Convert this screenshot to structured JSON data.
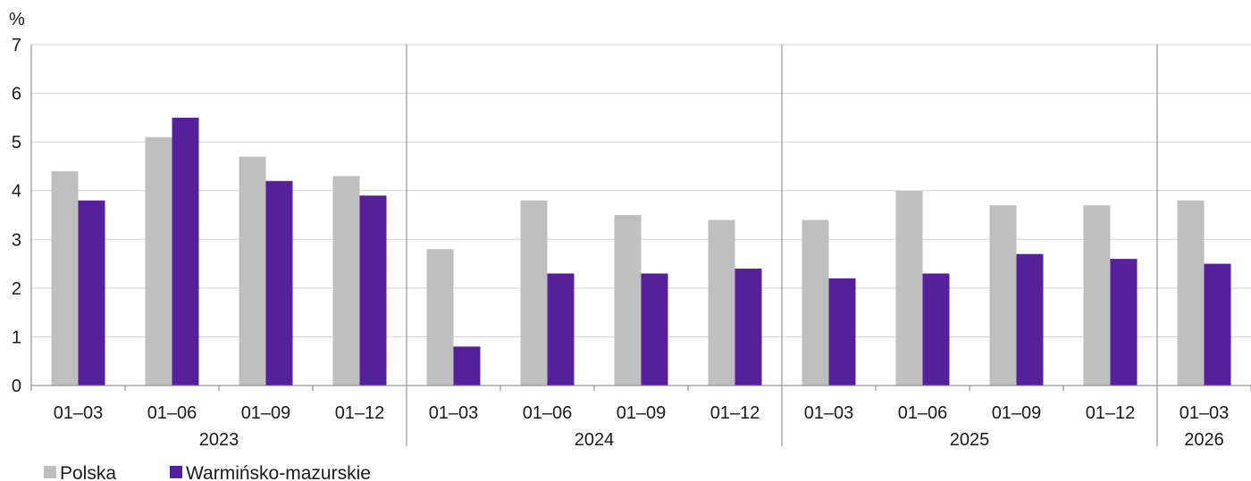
{
  "chart_data": {
    "type": "bar",
    "unit": "%",
    "ylim": [
      0,
      7
    ],
    "yticks": [
      "0",
      "1",
      "2",
      "3",
      "4",
      "5",
      "6",
      "7"
    ],
    "categories": [
      "01–03",
      "01–06",
      "01–09",
      "01–12",
      "01–03",
      "01–06",
      "01–09",
      "01–12",
      "01–03",
      "01–06",
      "01–09",
      "01–12",
      "01–03"
    ],
    "year_groups": [
      {
        "label": "2023",
        "count": 4
      },
      {
        "label": "2024",
        "count": 4
      },
      {
        "label": "2025",
        "count": 4
      },
      {
        "label": "2026",
        "count": 1
      }
    ],
    "series": [
      {
        "name": "Polska",
        "color": "#bfbfbf",
        "values": [
          4.4,
          5.1,
          4.7,
          4.3,
          2.8,
          3.8,
          3.5,
          3.4,
          3.4,
          4.0,
          3.7,
          3.7,
          3.8
        ]
      },
      {
        "name": "Warmińsko-mazurskie",
        "color": "#56209a",
        "values": [
          3.8,
          5.5,
          4.2,
          3.9,
          0.8,
          2.3,
          2.3,
          2.4,
          2.2,
          2.3,
          2.7,
          2.6,
          2.5
        ]
      }
    ],
    "grid": true,
    "legend_position": "bottom-left"
  }
}
